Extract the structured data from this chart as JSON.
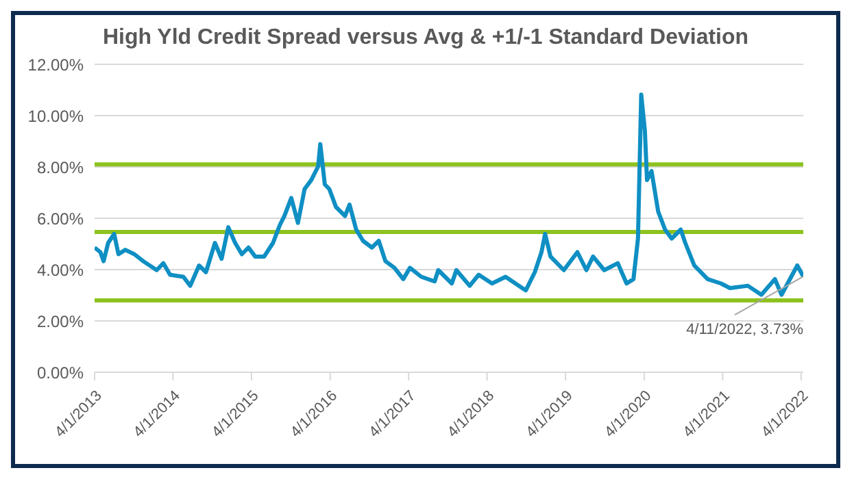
{
  "chart_data": {
    "type": "line",
    "title": "High Yld Credit Spread versus Avg & +1/-1 Standard Deviation",
    "x": [
      "2013-04-01",
      "2013-04-28",
      "2013-05-13",
      "2013-06-03",
      "2013-07-01",
      "2013-07-21",
      "2013-08-22",
      "2013-10-03",
      "2013-11-13",
      "2014-01-15",
      "2014-02-15",
      "2014-03-18",
      "2014-05-19",
      "2014-06-20",
      "2014-07-31",
      "2014-09-01",
      "2014-10-13",
      "2014-11-13",
      "2014-12-14",
      "2015-01-15",
      "2015-02-15",
      "2015-03-18",
      "2015-04-18",
      "2015-05-30",
      "2015-07-10",
      "2015-08-11",
      "2015-09-01",
      "2015-10-03",
      "2015-11-03",
      "2015-12-04",
      "2016-01-04",
      "2016-02-05",
      "2016-02-15",
      "2016-03-07",
      "2016-03-28",
      "2016-04-28",
      "2016-06-09",
      "2016-06-30",
      "2016-07-31",
      "2016-09-01",
      "2016-10-12",
      "2016-11-13",
      "2016-12-14",
      "2017-01-25",
      "2017-03-07",
      "2017-04-07",
      "2017-05-30",
      "2017-07-31",
      "2017-08-17",
      "2017-10-19",
      "2017-11-09",
      "2018-01-10",
      "2018-02-21",
      "2018-04-24",
      "2018-06-26",
      "2018-09-28",
      "2018-11-09",
      "2018-12-10",
      "2018-12-27",
      "2019-01-21",
      "2019-03-24",
      "2019-05-26",
      "2019-07-07",
      "2019-08-07",
      "2019-09-28",
      "2019-11-30",
      "2020-01-10",
      "2020-02-11",
      "2020-03-03",
      "2020-03-18",
      "2020-04-04",
      "2020-04-14",
      "2020-05-05",
      "2020-06-05",
      "2020-07-07",
      "2020-08-07",
      "2020-09-18",
      "2020-10-09",
      "2020-11-20",
      "2021-01-21",
      "2021-03-24",
      "2021-05-05",
      "2021-07-27",
      "2021-09-28",
      "2021-11-30",
      "2021-12-31",
      "2022-03-14",
      "2022-04-11"
    ],
    "series": [
      {
        "color": "#0f8fc3",
        "values": [
          4.86,
          4.68,
          4.33,
          5.04,
          5.39,
          4.6,
          4.77,
          4.6,
          4.33,
          3.98,
          4.25,
          3.8,
          3.72,
          3.37,
          4.16,
          3.9,
          5.04,
          4.42,
          5.65,
          5.04,
          4.6,
          4.86,
          4.51,
          4.51,
          5.04,
          5.74,
          6.09,
          6.79,
          5.82,
          7.14,
          7.49,
          8.02,
          8.89,
          7.32,
          7.14,
          6.44,
          6.09,
          6.53,
          5.56,
          5.12,
          4.86,
          5.12,
          4.33,
          4.07,
          3.63,
          4.07,
          3.72,
          3.54,
          3.98,
          3.46,
          3.98,
          3.37,
          3.8,
          3.46,
          3.72,
          3.19,
          3.9,
          4.68,
          5.39,
          4.51,
          3.98,
          4.68,
          3.98,
          4.51,
          3.98,
          4.25,
          3.46,
          3.63,
          5.21,
          10.82,
          9.42,
          7.49,
          7.84,
          6.26,
          5.56,
          5.21,
          5.56,
          5.04,
          4.16,
          3.63,
          3.46,
          3.28,
          3.37,
          3.02,
          3.63,
          3.02,
          4.16,
          3.73
        ]
      }
    ],
    "xlim": [
      "2013-04-01",
      "2022-04-11"
    ],
    "xticks": [
      {
        "value": "2013-04-01",
        "label": "4/1/2013"
      },
      {
        "value": "2014-04-01",
        "label": "4/1/2014"
      },
      {
        "value": "2015-04-01",
        "label": "4/1/2015"
      },
      {
        "value": "2016-04-01",
        "label": "4/1/2016"
      },
      {
        "value": "2017-04-01",
        "label": "4/1/2017"
      },
      {
        "value": "2018-04-01",
        "label": "4/1/2018"
      },
      {
        "value": "2019-04-01",
        "label": "4/1/2019"
      },
      {
        "value": "2020-04-01",
        "label": "4/1/2020"
      },
      {
        "value": "2021-04-01",
        "label": "4/1/2021"
      },
      {
        "value": "2022-04-01",
        "label": "4/1/2022"
      }
    ],
    "ylim": [
      0,
      12
    ],
    "yticks": [
      {
        "value": 0,
        "label": "0.00%"
      },
      {
        "value": 2,
        "label": "2.00%"
      },
      {
        "value": 4,
        "label": "4.00%"
      },
      {
        "value": 6,
        "label": "6.00%"
      },
      {
        "value": 8,
        "label": "8.00%"
      },
      {
        "value": 10,
        "label": "10.00%"
      },
      {
        "value": 12,
        "label": "12.00%"
      }
    ],
    "ref_lines": [
      {
        "axis": "y",
        "value": 8.1,
        "color": "#8dc21f"
      },
      {
        "axis": "y",
        "value": 5.47,
        "color": "#8dc21f"
      },
      {
        "axis": "y",
        "value": 2.8,
        "color": "#8dc21f"
      }
    ],
    "annotations": [
      {
        "text": "4/11/2022, 3.73%",
        "x": "2022-04-11",
        "y": 3.73
      }
    ],
    "grid": "y",
    "legend": false,
    "marker": "none",
    "line_style": "solid"
  }
}
